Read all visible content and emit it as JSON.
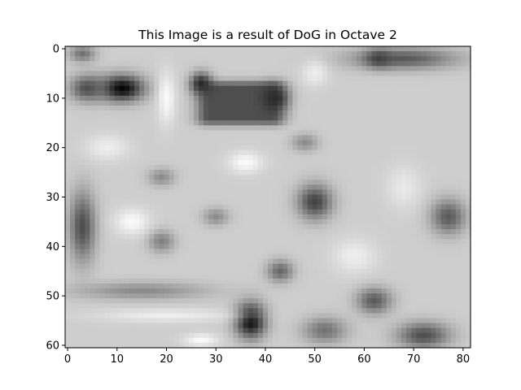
{
  "chart_data": {
    "type": "heatmap",
    "colormap": "grayscale",
    "title": "This Image is a result of DoG in Octave 2",
    "xlabel": "",
    "ylabel": "",
    "xlim": [
      -0.5,
      81.5
    ],
    "ylim": [
      60.5,
      -0.5
    ],
    "xticks": [
      0,
      10,
      20,
      30,
      40,
      50,
      60,
      70,
      80
    ],
    "yticks": [
      0,
      10,
      20,
      30,
      40,
      50,
      60
    ],
    "grid": false,
    "image_size": {
      "columns": 82,
      "rows": 61
    },
    "background_intensity": 0.82,
    "dark_features": [
      {
        "label": "dark blob",
        "center": [
          11,
          8
        ],
        "radius": [
          5,
          3
        ],
        "intensity": 0.0
      },
      {
        "label": "dark blob",
        "center": [
          4,
          8
        ],
        "radius": [
          4,
          3
        ],
        "intensity": 0.3
      },
      {
        "label": "dark blob",
        "center": [
          3,
          1
        ],
        "radius": [
          3,
          2
        ],
        "intensity": 0.45
      },
      {
        "label": "dark rectangle",
        "center": [
          35,
          11
        ],
        "radius": [
          9,
          4.5
        ],
        "intensity": 0.3,
        "shape": "box"
      },
      {
        "label": "dark blob",
        "center": [
          42,
          10
        ],
        "radius": [
          3,
          3
        ],
        "intensity": 0.15
      },
      {
        "label": "dark blob",
        "center": [
          27,
          7
        ],
        "radius": [
          2.5,
          2.5
        ],
        "intensity": 0.15
      },
      {
        "label": "dark band",
        "center": [
          68,
          2
        ],
        "radius": [
          12,
          2.5
        ],
        "intensity": 0.35
      },
      {
        "label": "dark blob",
        "center": [
          63,
          2
        ],
        "radius": [
          3,
          2
        ],
        "intensity": 0.25
      },
      {
        "label": "dark blob",
        "center": [
          3,
          36
        ],
        "radius": [
          3,
          8
        ],
        "intensity": 0.3
      },
      {
        "label": "dark blob",
        "center": [
          50,
          31
        ],
        "radius": [
          4,
          4
        ],
        "intensity": 0.25
      },
      {
        "label": "dark blob",
        "center": [
          77,
          34
        ],
        "radius": [
          4,
          4
        ],
        "intensity": 0.35
      },
      {
        "label": "dark blob",
        "center": [
          43,
          45
        ],
        "radius": [
          3,
          2.5
        ],
        "intensity": 0.4
      },
      {
        "label": "dark blob",
        "center": [
          37,
          55
        ],
        "radius": [
          3.5,
          4
        ],
        "intensity": 0.0
      },
      {
        "label": "dark blob",
        "center": [
          62,
          51
        ],
        "radius": [
          4,
          3
        ],
        "intensity": 0.35
      },
      {
        "label": "dark blob",
        "center": [
          72,
          58
        ],
        "radius": [
          6,
          3
        ],
        "intensity": 0.3
      },
      {
        "label": "dark blob",
        "center": [
          52,
          57
        ],
        "radius": [
          5,
          3
        ],
        "intensity": 0.45
      },
      {
        "label": "dark blob",
        "center": [
          19,
          39
        ],
        "radius": [
          3,
          2.5
        ],
        "intensity": 0.5
      },
      {
        "label": "dark blob",
        "center": [
          19,
          26
        ],
        "radius": [
          3,
          2
        ],
        "intensity": 0.55
      },
      {
        "label": "dark blob",
        "center": [
          30,
          34
        ],
        "radius": [
          3,
          2
        ],
        "intensity": 0.55
      },
      {
        "label": "dark band",
        "center": [
          15,
          49
        ],
        "radius": [
          15,
          2
        ],
        "intensity": 0.55
      },
      {
        "label": "dark blob",
        "center": [
          48,
          19
        ],
        "radius": [
          3,
          2
        ],
        "intensity": 0.55
      }
    ],
    "bright_features": [
      {
        "label": "bright blob",
        "center": [
          36,
          23
        ],
        "radius": [
          4,
          2.5
        ],
        "intensity": 1.0
      },
      {
        "label": "bright blob",
        "center": [
          20,
          10
        ],
        "radius": [
          2,
          6
        ],
        "intensity": 1.0
      },
      {
        "label": "bright blob",
        "center": [
          13,
          35
        ],
        "radius": [
          4,
          3
        ],
        "intensity": 1.0
      },
      {
        "label": "bright blob",
        "center": [
          8,
          20
        ],
        "radius": [
          5,
          3
        ],
        "intensity": 0.95
      },
      {
        "label": "bright blob",
        "center": [
          58,
          42
        ],
        "radius": [
          5,
          4
        ],
        "intensity": 0.95
      },
      {
        "label": "bright blob",
        "center": [
          68,
          28
        ],
        "radius": [
          4,
          5
        ],
        "intensity": 0.93
      },
      {
        "label": "bright band",
        "center": [
          20,
          54
        ],
        "radius": [
          16,
          1.5
        ],
        "intensity": 0.95
      },
      {
        "label": "bright blob",
        "center": [
          50,
          5
        ],
        "radius": [
          3,
          3
        ],
        "intensity": 0.95
      },
      {
        "label": "bright blob",
        "center": [
          27,
          59
        ],
        "radius": [
          4,
          1.5
        ],
        "intensity": 1.0
      }
    ]
  }
}
